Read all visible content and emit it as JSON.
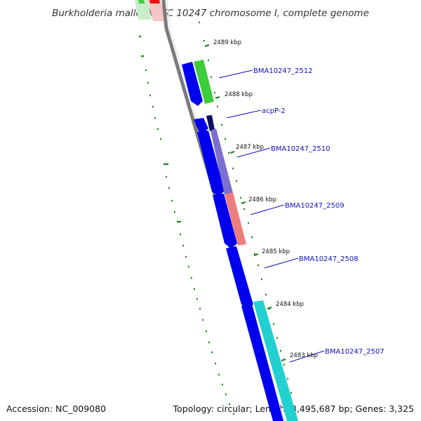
{
  "title": "Burkholderia mallei NCTC 10247 chromosome I, complete genome",
  "accession": "Accession: NC_009080",
  "summary": "Topology: circular; Length: 3,495,687 bp; Genes: 3,325",
  "colors": {
    "backbone": "#7a7a7a",
    "forward_gene": "#0000ee",
    "gc_tick": "#2a8a2a",
    "label": "#1010c0"
  },
  "kbp_markers": [
    "2489 kbp",
    "2488 kbp",
    "2487 kbp",
    "2486 kbp",
    "2485 kbp",
    "2484 kbp",
    "2483 kbp"
  ],
  "gene_labels": [
    "BMA10247_2512",
    "acpP-2",
    "BMA10247_2510",
    "BMA10247_2509",
    "BMA10247_2508",
    "BMA10247_2507"
  ]
}
